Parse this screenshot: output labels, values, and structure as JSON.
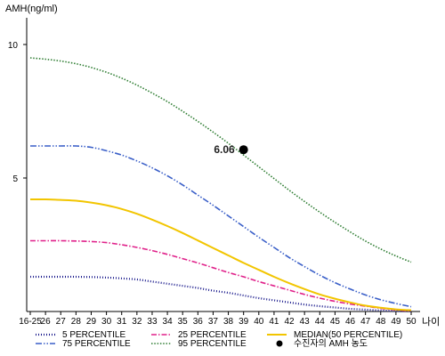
{
  "chart_data": {
    "type": "line",
    "ylabel": "AMH(ng/ml)",
    "xlabel": "나이",
    "x": [
      "16-25",
      "26",
      "27",
      "28",
      "29",
      "30",
      "31",
      "32",
      "33",
      "34",
      "35",
      "36",
      "37",
      "38",
      "39",
      "40",
      "41",
      "42",
      "43",
      "44",
      "45",
      "46",
      "47",
      "48",
      "49",
      "50"
    ],
    "yticks": [
      5,
      10
    ],
    "ylim": [
      0,
      11
    ],
    "grid": false,
    "series": [
      {
        "name": "5 PERCENTILE",
        "color": "#1a1a8c",
        "dash": "1,2",
        "width": 2.2,
        "values": [
          1.3,
          1.3,
          1.3,
          1.3,
          1.29,
          1.27,
          1.24,
          1.2,
          1.12,
          1.04,
          0.96,
          0.88,
          0.78,
          0.7,
          0.6,
          0.5,
          0.42,
          0.34,
          0.26,
          0.2,
          0.15,
          0.1,
          0.07,
          0.04,
          0.02,
          0.01
        ]
      },
      {
        "name": "25 PERCENTILE",
        "color": "#e0218a",
        "dash": "6,2,1.5,2",
        "width": 1.6,
        "values": [
          2.65,
          2.65,
          2.65,
          2.64,
          2.62,
          2.58,
          2.5,
          2.4,
          2.28,
          2.14,
          1.98,
          1.82,
          1.64,
          1.46,
          1.3,
          1.12,
          0.96,
          0.8,
          0.64,
          0.5,
          0.38,
          0.28,
          0.2,
          0.12,
          0.06,
          0.02
        ]
      },
      {
        "name": "MEDIAN(50 PERCENTILE)",
        "color": "#f2c500",
        "dash": "",
        "width": 2,
        "values": [
          4.2,
          4.2,
          4.18,
          4.15,
          4.08,
          3.98,
          3.84,
          3.66,
          3.44,
          3.2,
          2.94,
          2.66,
          2.38,
          2.1,
          1.82,
          1.56,
          1.3,
          1.06,
          0.84,
          0.64,
          0.48,
          0.34,
          0.22,
          0.14,
          0.08,
          0.05
        ]
      },
      {
        "name": "75 PERCENTILE",
        "color": "#3a5fc8",
        "dash": "7,2,1.5,2,1.5,2",
        "width": 1.6,
        "values": [
          6.2,
          6.2,
          6.2,
          6.2,
          6.15,
          6.02,
          5.86,
          5.64,
          5.38,
          5.08,
          4.74,
          4.36,
          3.98,
          3.58,
          3.18,
          2.78,
          2.4,
          2.02,
          1.68,
          1.36,
          1.08,
          0.84,
          0.62,
          0.44,
          0.3,
          0.18
        ]
      },
      {
        "name": "95 PERCENTILE",
        "color": "#2e7d32",
        "dash": "1.5,1.8",
        "width": 1.6,
        "values": [
          9.5,
          9.45,
          9.38,
          9.28,
          9.14,
          8.96,
          8.74,
          8.48,
          8.18,
          7.86,
          7.5,
          7.12,
          6.72,
          6.3,
          5.86,
          5.42,
          4.98,
          4.54,
          4.12,
          3.72,
          3.34,
          2.98,
          2.64,
          2.34,
          2.08,
          1.85
        ]
      }
    ],
    "marker": {
      "name": "수진자의 AMH 농도",
      "x": "39",
      "y": 6.06,
      "label": "6.06",
      "color": "#000000"
    },
    "legend": {
      "placement": "bottom",
      "columns": 3
    }
  }
}
